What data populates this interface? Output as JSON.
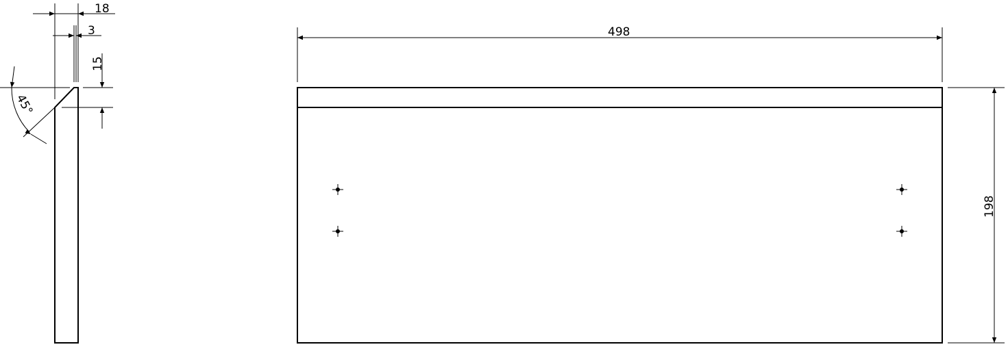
{
  "side_view": {
    "dim_width": "18",
    "dim_chamfer_width": "3",
    "dim_chamfer_height": "15",
    "dim_angle": "45°"
  },
  "front_view": {
    "dim_length": "498",
    "dim_height": "198",
    "hole_count": 4
  },
  "colors": {
    "line": "#000000",
    "background": "#ffffff"
  }
}
